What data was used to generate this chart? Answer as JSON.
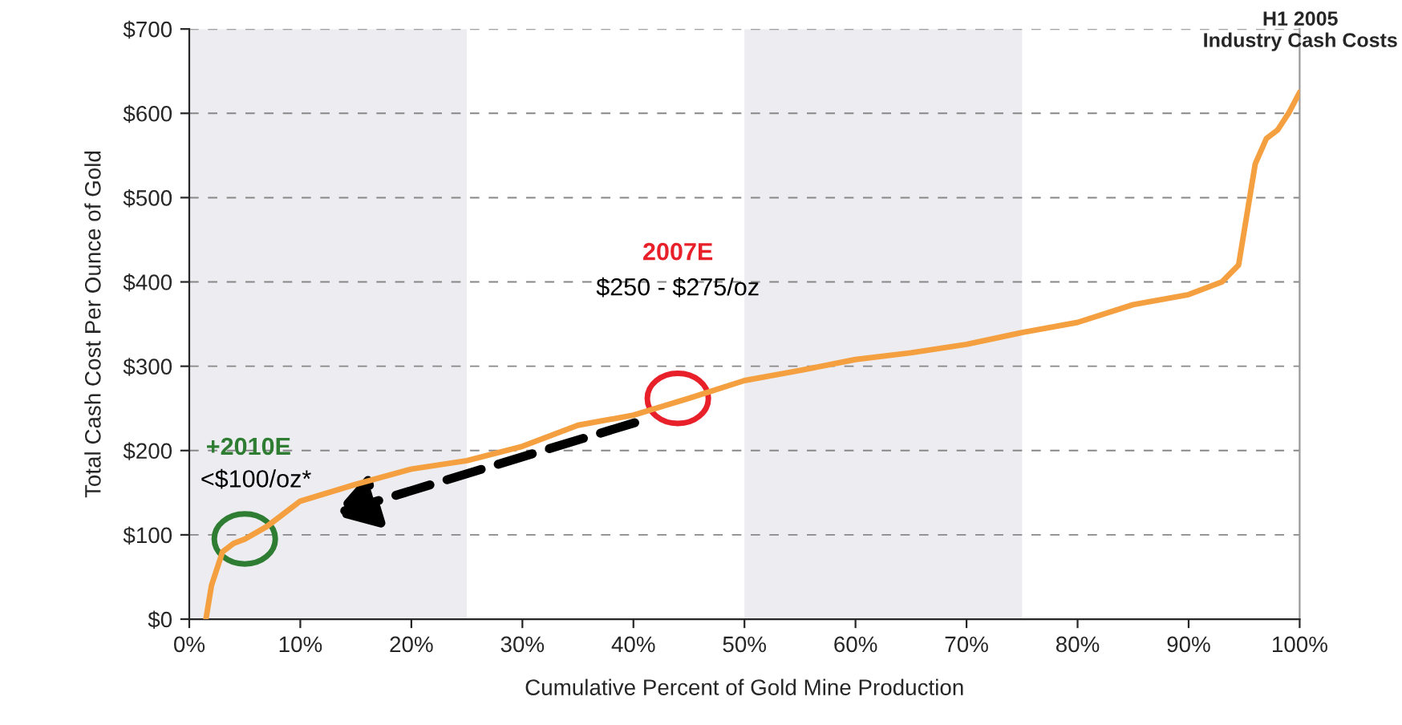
{
  "chart_data": {
    "type": "line",
    "xlabel": "Cumulative Percent of Gold Mine Production",
    "ylabel": "Total Cash Cost Per Ounce of Gold",
    "x": [
      1.5,
      2,
      3,
      4,
      5,
      7,
      10,
      15,
      20,
      25,
      30,
      35,
      40,
      45,
      50,
      55,
      60,
      65,
      70,
      75,
      80,
      85,
      90,
      93,
      94.5,
      95,
      96,
      97,
      98,
      99,
      100
    ],
    "series": [
      {
        "color": "#f5a040",
        "values": [
          0,
          40,
          80,
          90,
          95,
          110,
          140,
          160,
          178,
          188,
          205,
          230,
          242,
          262,
          283,
          295,
          308,
          316,
          326,
          340,
          352,
          373,
          385,
          400,
          420,
          460,
          540,
          570,
          580,
          600,
          625
        ]
      }
    ],
    "xlim": [
      0,
      100
    ],
    "ylim": [
      0,
      700
    ],
    "xticks": [
      {
        "value": 0,
        "label": "0%"
      },
      {
        "value": 10,
        "label": "10%"
      },
      {
        "value": 20,
        "label": "20%"
      },
      {
        "value": 30,
        "label": "30%"
      },
      {
        "value": 40,
        "label": "40%"
      },
      {
        "value": 50,
        "label": "50%"
      },
      {
        "value": 60,
        "label": "60%"
      },
      {
        "value": 70,
        "label": "70%"
      },
      {
        "value": 80,
        "label": "80%"
      },
      {
        "value": 90,
        "label": "90%"
      },
      {
        "value": 100,
        "label": "100%"
      }
    ],
    "yticks": [
      {
        "value": 0,
        "label": "$0"
      },
      {
        "value": 100,
        "label": "$100"
      },
      {
        "value": 200,
        "label": "$200"
      },
      {
        "value": 300,
        "label": "$300"
      },
      {
        "value": 400,
        "label": "$400"
      },
      {
        "value": 500,
        "label": "$500"
      },
      {
        "value": 600,
        "label": "$600"
      },
      {
        "value": 700,
        "label": "$700"
      }
    ],
    "grid": "y",
    "legend": false,
    "marker": "none",
    "line_style": "solid",
    "bands": [
      {
        "axis": "x",
        "from": 0,
        "to": 25,
        "color": "#ececf1"
      },
      {
        "axis": "x",
        "from": 50,
        "to": 75,
        "color": "#ececf1"
      }
    ],
    "annotations": [
      "2007E",
      "$250 - $275/oz",
      "+2010E",
      "<$100/oz*",
      "H1 2005\nIndustry Cash Costs"
    ]
  }
}
